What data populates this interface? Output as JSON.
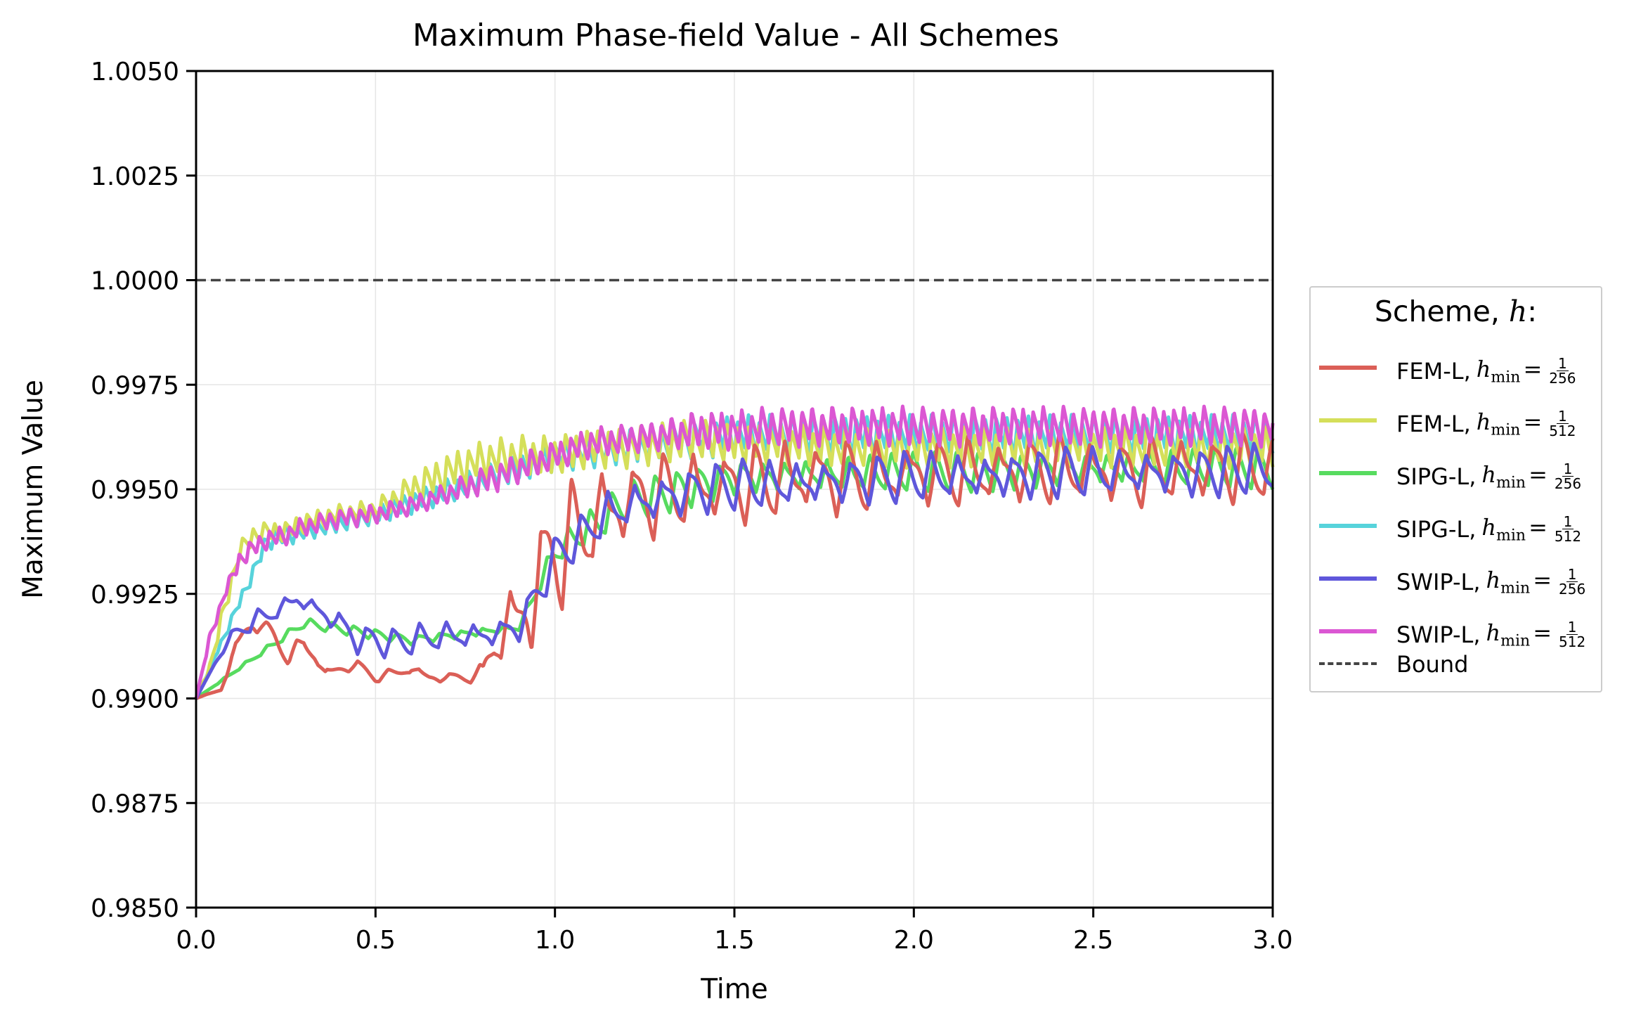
{
  "chart_data": {
    "type": "line",
    "title": "Maximum Phase-field Value - All Schemes",
    "xlabel": "Time",
    "ylabel": "Maximum Value",
    "xlim": [
      0.0,
      3.0
    ],
    "ylim": [
      0.985,
      1.005
    ],
    "xticks": [
      "0.0",
      "0.5",
      "1.0",
      "1.5",
      "2.0",
      "2.5",
      "3.0"
    ],
    "yticks": [
      "0.9850",
      "0.9875",
      "0.9900",
      "0.9925",
      "0.9950",
      "0.9975",
      "1.0000",
      "1.0025",
      "1.0050"
    ],
    "grid": true,
    "legend_title": "Scheme, h:",
    "legend_placement": "right, outside plot",
    "bound": {
      "name": "Bound",
      "value": 1.0,
      "color": "#444444",
      "style": "dashed"
    },
    "series": [
      {
        "name": "FEM-L",
        "h_min_num": "1",
        "h_min_den": "256",
        "color": "#db5f57",
        "x": [
          0.0,
          0.03,
          0.07,
          0.1,
          0.13,
          0.16,
          0.2,
          0.23,
          0.26,
          0.3,
          0.33,
          0.36,
          0.4,
          0.45,
          0.5,
          0.55,
          0.6,
          0.65,
          0.7,
          0.75,
          0.8,
          0.83,
          0.86,
          0.9,
          0.93,
          0.96,
          1.0,
          1.05,
          1.1,
          1.15,
          1.2,
          1.25,
          1.3,
          1.4,
          1.5,
          1.6,
          1.7,
          1.8,
          1.9,
          2.0,
          2.2,
          2.4,
          2.6,
          2.8,
          3.0
        ],
        "y": [
          0.99,
          0.9901,
          0.9902,
          0.991,
          0.9915,
          0.9918,
          0.9917,
          0.9913,
          0.991,
          0.9913,
          0.991,
          0.9906,
          0.9907,
          0.9908,
          0.9905,
          0.9906,
          0.9907,
          0.9905,
          0.9905,
          0.9905,
          0.9906,
          0.9914,
          0.9916,
          0.992,
          0.9922,
          0.993,
          0.9935,
          0.9938,
          0.9942,
          0.9945,
          0.9947,
          0.9948,
          0.9949,
          0.995,
          0.9951,
          0.9952,
          0.9953,
          0.9953,
          0.9953,
          0.9954,
          0.9954,
          0.9955,
          0.9954,
          0.9955,
          0.9955
        ],
        "osc_amp": [
          0,
          0,
          0,
          0.0002,
          0.0002,
          0.0002,
          0.0001,
          0.0002,
          0.0002,
          0.0002,
          0.0001,
          0.0001,
          0.0001,
          0.0001,
          0.0001,
          0.0001,
          0.0001,
          0.0001,
          0.0001,
          0.0001,
          0.0002,
          0.0006,
          0.0008,
          0.001,
          0.0012,
          0.0012,
          0.0012,
          0.0012,
          0.001,
          0.001,
          0.0009,
          0.0009,
          0.0008,
          0.0008,
          0.0008,
          0.0008,
          0.0008,
          0.0008,
          0.0007,
          0.0007,
          0.0007,
          0.0007,
          0.0007,
          0.0007,
          0.0007
        ]
      },
      {
        "name": "FEM-L",
        "h_min_num": "1",
        "h_min_den": "512",
        "color": "#d5df5a",
        "x": [
          0.0,
          0.04,
          0.08,
          0.12,
          0.16,
          0.2,
          0.25,
          0.3,
          0.4,
          0.5,
          0.6,
          0.7,
          0.8,
          0.9,
          1.0,
          1.1,
          1.2,
          1.3,
          1.4,
          1.5,
          1.6,
          1.8,
          2.0,
          2.2,
          2.4,
          2.6,
          2.8,
          3.0
        ],
        "y": [
          0.99,
          0.9908,
          0.9922,
          0.9935,
          0.9939,
          0.994,
          0.994,
          0.9942,
          0.9944,
          0.9945,
          0.995,
          0.9954,
          0.9957,
          0.9958,
          0.9958,
          0.996,
          0.996,
          0.9961,
          0.9962,
          0.9961,
          0.9961,
          0.996,
          0.996,
          0.996,
          0.996,
          0.996,
          0.996,
          0.996
        ],
        "osc_amp": [
          0,
          0.0001,
          0.0002,
          0.0002,
          0.0002,
          0.0002,
          0.0002,
          0.0002,
          0.0002,
          0.0002,
          0.0003,
          0.0004,
          0.0004,
          0.0004,
          0.0004,
          0.0004,
          0.0004,
          0.0004,
          0.0004,
          0.0004,
          0.0004,
          0.0004,
          0.0004,
          0.0004,
          0.0004,
          0.0004,
          0.0004,
          0.0004
        ]
      },
      {
        "name": "SIPG-L",
        "h_min_num": "1",
        "h_min_den": "256",
        "color": "#57db5f",
        "x": [
          0.0,
          0.3,
          0.6,
          0.9,
          1.0,
          1.2,
          1.5,
          2.0,
          2.5,
          3.0
        ],
        "y": [
          0.99,
          0.9918,
          0.9914,
          0.9917,
          0.9935,
          0.9947,
          0.9953,
          0.9954,
          0.9955,
          0.9955
        ],
        "osc_amp": [
          0,
          0.0001,
          0.0001,
          0.0001,
          0.0003,
          0.0004,
          0.0004,
          0.0004,
          0.0004,
          0.0004
        ]
      },
      {
        "name": "SIPG-L",
        "h_min_num": "1",
        "h_min_den": "512",
        "color": "#57d3db",
        "x": [
          0.0,
          0.2,
          0.5,
          1.0,
          1.5,
          2.0,
          2.5,
          3.0
        ],
        "y": [
          0.99,
          0.9938,
          0.9944,
          0.9958,
          0.9963,
          0.9963,
          0.9963,
          0.9963
        ],
        "osc_amp": [
          0,
          0.0002,
          0.0002,
          0.0003,
          0.0004,
          0.0004,
          0.0004,
          0.0004
        ]
      },
      {
        "name": "SWIP-L",
        "h_min_num": "1",
        "h_min_den": "256",
        "color": "#5f57db",
        "x": [
          0.0,
          0.05,
          0.1,
          0.15,
          0.2,
          0.25,
          0.28,
          0.32,
          0.36,
          0.4,
          0.45,
          0.5,
          0.55,
          0.6,
          0.7,
          0.8,
          0.9,
          0.95,
          1.0,
          1.05,
          1.1,
          1.15,
          1.2,
          1.3,
          1.4,
          1.5,
          1.6,
          1.8,
          2.0,
          2.2,
          2.4,
          2.6,
          2.8,
          3.0
        ],
        "y": [
          0.99,
          0.9908,
          0.9915,
          0.9918,
          0.992,
          0.9922,
          0.9924,
          0.9922,
          0.992,
          0.9918,
          0.9914,
          0.9914,
          0.9913,
          0.9914,
          0.9915,
          0.9915,
          0.9917,
          0.9925,
          0.9934,
          0.9937,
          0.9941,
          0.9944,
          0.9946,
          0.9948,
          0.995,
          0.9951,
          0.9951,
          0.9952,
          0.9953,
          0.9953,
          0.9954,
          0.9954,
          0.9954,
          0.9955
        ],
        "osc_amp": [
          0,
          0,
          0.0001,
          0.0002,
          0.0002,
          0.0002,
          0.0002,
          0.0002,
          0.0002,
          0.0003,
          0.0003,
          0.0003,
          0.0003,
          0.0003,
          0.0003,
          0.0003,
          0.0003,
          0.0004,
          0.0004,
          0.0004,
          0.0004,
          0.0005,
          0.0005,
          0.0005,
          0.0005,
          0.0005,
          0.0005,
          0.0005,
          0.0005,
          0.0005,
          0.0005,
          0.0005,
          0.0005,
          0.0005
        ]
      },
      {
        "name": "SWIP-L",
        "h_min_num": "1",
        "h_min_den": "512",
        "color": "#db57d3",
        "x": [
          0.0,
          0.04,
          0.08,
          0.12,
          0.16,
          0.2,
          0.25,
          0.3,
          0.4,
          0.5,
          0.6,
          0.7,
          0.8,
          0.9,
          1.0,
          1.1,
          1.2,
          1.3,
          1.4,
          1.5,
          1.6,
          1.7,
          1.8,
          2.0,
          2.2,
          2.4,
          2.6,
          2.8,
          3.0
        ],
        "y": [
          0.99,
          0.9915,
          0.9925,
          0.9933,
          0.9936,
          0.9938,
          0.9939,
          0.9941,
          0.9943,
          0.9944,
          0.9946,
          0.9949,
          0.9952,
          0.9955,
          0.9958,
          0.9961,
          0.9962,
          0.9963,
          0.9964,
          0.9964,
          0.9965,
          0.9965,
          0.9965,
          0.9965,
          0.9965,
          0.9965,
          0.9965,
          0.9965,
          0.9965
        ],
        "osc_amp": [
          0,
          0.0001,
          0.0001,
          0.0002,
          0.0002,
          0.0002,
          0.0002,
          0.0002,
          0.0002,
          0.0002,
          0.0002,
          0.0002,
          0.0003,
          0.0003,
          0.0003,
          0.0003,
          0.0003,
          0.0003,
          0.0004,
          0.0004,
          0.0004,
          0.0004,
          0.0004,
          0.0004,
          0.0004,
          0.0004,
          0.0004,
          0.0004,
          0.0004
        ]
      }
    ]
  },
  "legend": {
    "title_prefix": "Scheme, ",
    "title_var": "h",
    "title_suffix": ":",
    "h_symbol": "h",
    "h_sub": "min",
    "equals": "=",
    "bound_label": "Bound",
    "items": [
      {
        "label": "FEM-L,",
        "num": "1",
        "den": "256",
        "color": "#db5f57"
      },
      {
        "label": "FEM-L,",
        "num": "1",
        "den": "512",
        "color": "#d5df5a"
      },
      {
        "label": "SIPG-L,",
        "num": "1",
        "den": "256",
        "color": "#57db5f"
      },
      {
        "label": "SIPG-L,",
        "num": "1",
        "den": "512",
        "color": "#57d3db"
      },
      {
        "label": "SWIP-L,",
        "num": "1",
        "den": "256",
        "color": "#5f57db"
      },
      {
        "label": "SWIP-L,",
        "num": "1",
        "den": "512",
        "color": "#db57d3"
      }
    ]
  }
}
